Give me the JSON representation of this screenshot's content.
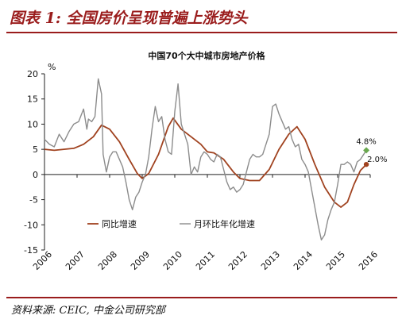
{
  "figure": {
    "title": "图表 1:  全国房价呈现普遍上涨势头",
    "source": "资料来源:  CEIC,  中金公司研究部"
  },
  "chart_data": {
    "type": "line",
    "title": "中国70个大中城市房地产价格",
    "ylabel": "%",
    "xlabel": "",
    "ylim": [
      -15,
      20
    ],
    "yticks": [
      -15,
      -10,
      -5,
      0,
      5,
      10,
      15,
      20
    ],
    "xlim": [
      2006,
      2016
    ],
    "xticks": [
      "2006",
      "2007",
      "2008",
      "2009",
      "2010",
      "2011",
      "2012",
      "2013",
      "2014",
      "2015",
      "2016"
    ],
    "grid": false,
    "legend_position": "bottom",
    "series": [
      {
        "name": "同比增速",
        "color": "#a0421f",
        "x": [
          2006.0,
          2006.3,
          2006.6,
          2006.9,
          2007.2,
          2007.5,
          2007.75,
          2008.0,
          2008.3,
          2008.6,
          2008.85,
          2009.0,
          2009.2,
          2009.5,
          2009.8,
          2009.95,
          2010.2,
          2010.5,
          2010.8,
          2011.0,
          2011.2,
          2011.5,
          2011.8,
          2012.0,
          2012.3,
          2012.6,
          2012.9,
          2013.2,
          2013.5,
          2013.75,
          2014.0,
          2014.3,
          2014.6,
          2014.9,
          2015.1,
          2015.3,
          2015.5,
          2015.7,
          2015.88
        ],
        "values": [
          5.0,
          4.8,
          5.0,
          5.2,
          6.0,
          7.5,
          9.8,
          9.0,
          6.5,
          3.0,
          0.2,
          -0.8,
          0.2,
          4.0,
          9.5,
          11.2,
          9.0,
          7.5,
          6.0,
          4.5,
          4.3,
          3.0,
          0.5,
          -0.8,
          -1.2,
          -1.2,
          1.0,
          5.0,
          8.0,
          9.5,
          7.0,
          2.0,
          -2.5,
          -5.5,
          -6.5,
          -5.5,
          -2.0,
          0.8,
          2.0
        ]
      },
      {
        "name": "月环比年化增速",
        "color": "#8c8c8c",
        "x": [
          2006.0,
          2006.15,
          2006.3,
          2006.45,
          2006.6,
          2006.75,
          2006.9,
          2007.05,
          2007.2,
          2007.3,
          2007.35,
          2007.45,
          2007.55,
          2007.65,
          2007.75,
          2007.8,
          2007.9,
          2008.0,
          2008.1,
          2008.2,
          2008.3,
          2008.4,
          2008.5,
          2008.6,
          2008.7,
          2008.8,
          2008.9,
          2009.0,
          2009.1,
          2009.2,
          2009.3,
          2009.4,
          2009.5,
          2009.6,
          2009.7,
          2009.8,
          2009.9,
          2010.0,
          2010.1,
          2010.2,
          2010.3,
          2010.4,
          2010.5,
          2010.6,
          2010.7,
          2010.8,
          2010.9,
          2011.0,
          2011.1,
          2011.2,
          2011.3,
          2011.4,
          2011.5,
          2011.6,
          2011.7,
          2011.8,
          2011.9,
          2012.0,
          2012.1,
          2012.2,
          2012.3,
          2012.4,
          2012.5,
          2012.6,
          2012.7,
          2012.8,
          2012.9,
          2013.0,
          2013.1,
          2013.2,
          2013.3,
          2013.4,
          2013.5,
          2013.6,
          2013.7,
          2013.8,
          2013.9,
          2014.0,
          2014.1,
          2014.2,
          2014.3,
          2014.4,
          2014.5,
          2014.6,
          2014.7,
          2014.8,
          2014.9,
          2015.0,
          2015.1,
          2015.2,
          2015.3,
          2015.4,
          2015.5,
          2015.6,
          2015.7,
          2015.8,
          2015.88
        ],
        "values": [
          7.0,
          6.0,
          5.5,
          8.0,
          6.5,
          8.5,
          10.0,
          10.5,
          13.0,
          9.0,
          11.0,
          10.5,
          11.5,
          19.0,
          16.0,
          4.0,
          0.5,
          3.5,
          4.5,
          4.5,
          3.0,
          1.5,
          -1.5,
          -5.0,
          -7.0,
          -4.5,
          -3.5,
          -1.5,
          0.0,
          3.5,
          9.0,
          13.5,
          10.5,
          11.5,
          7.0,
          4.5,
          4.0,
          12.5,
          18.0,
          10.0,
          8.0,
          6.0,
          0.0,
          1.5,
          0.5,
          3.5,
          4.5,
          4.0,
          3.0,
          2.5,
          4.0,
          3.5,
          1.0,
          -1.5,
          -3.0,
          -2.5,
          -3.5,
          -3.0,
          -2.0,
          0.5,
          3.0,
          4.0,
          3.5,
          3.5,
          4.0,
          6.0,
          8.0,
          13.5,
          14.0,
          12.0,
          10.5,
          9.0,
          9.5,
          7.0,
          5.5,
          6.0,
          3.0,
          2.0,
          0.5,
          -3.0,
          -6.5,
          -10.0,
          -13.0,
          -12.0,
          -9.0,
          -7.0,
          -5.5,
          -2.0,
          2.0,
          2.0,
          2.5,
          2.0,
          0.5,
          2.5,
          3.0,
          4.0,
          4.8
        ]
      }
    ],
    "annotations": [
      {
        "text": "4.8%",
        "series": 1,
        "x": 2015.88,
        "y": 4.8,
        "color": "#6aa84f"
      },
      {
        "text": "2.0%",
        "series": 0,
        "x": 2015.88,
        "y": 2.0,
        "color": "#a0421f"
      }
    ]
  }
}
